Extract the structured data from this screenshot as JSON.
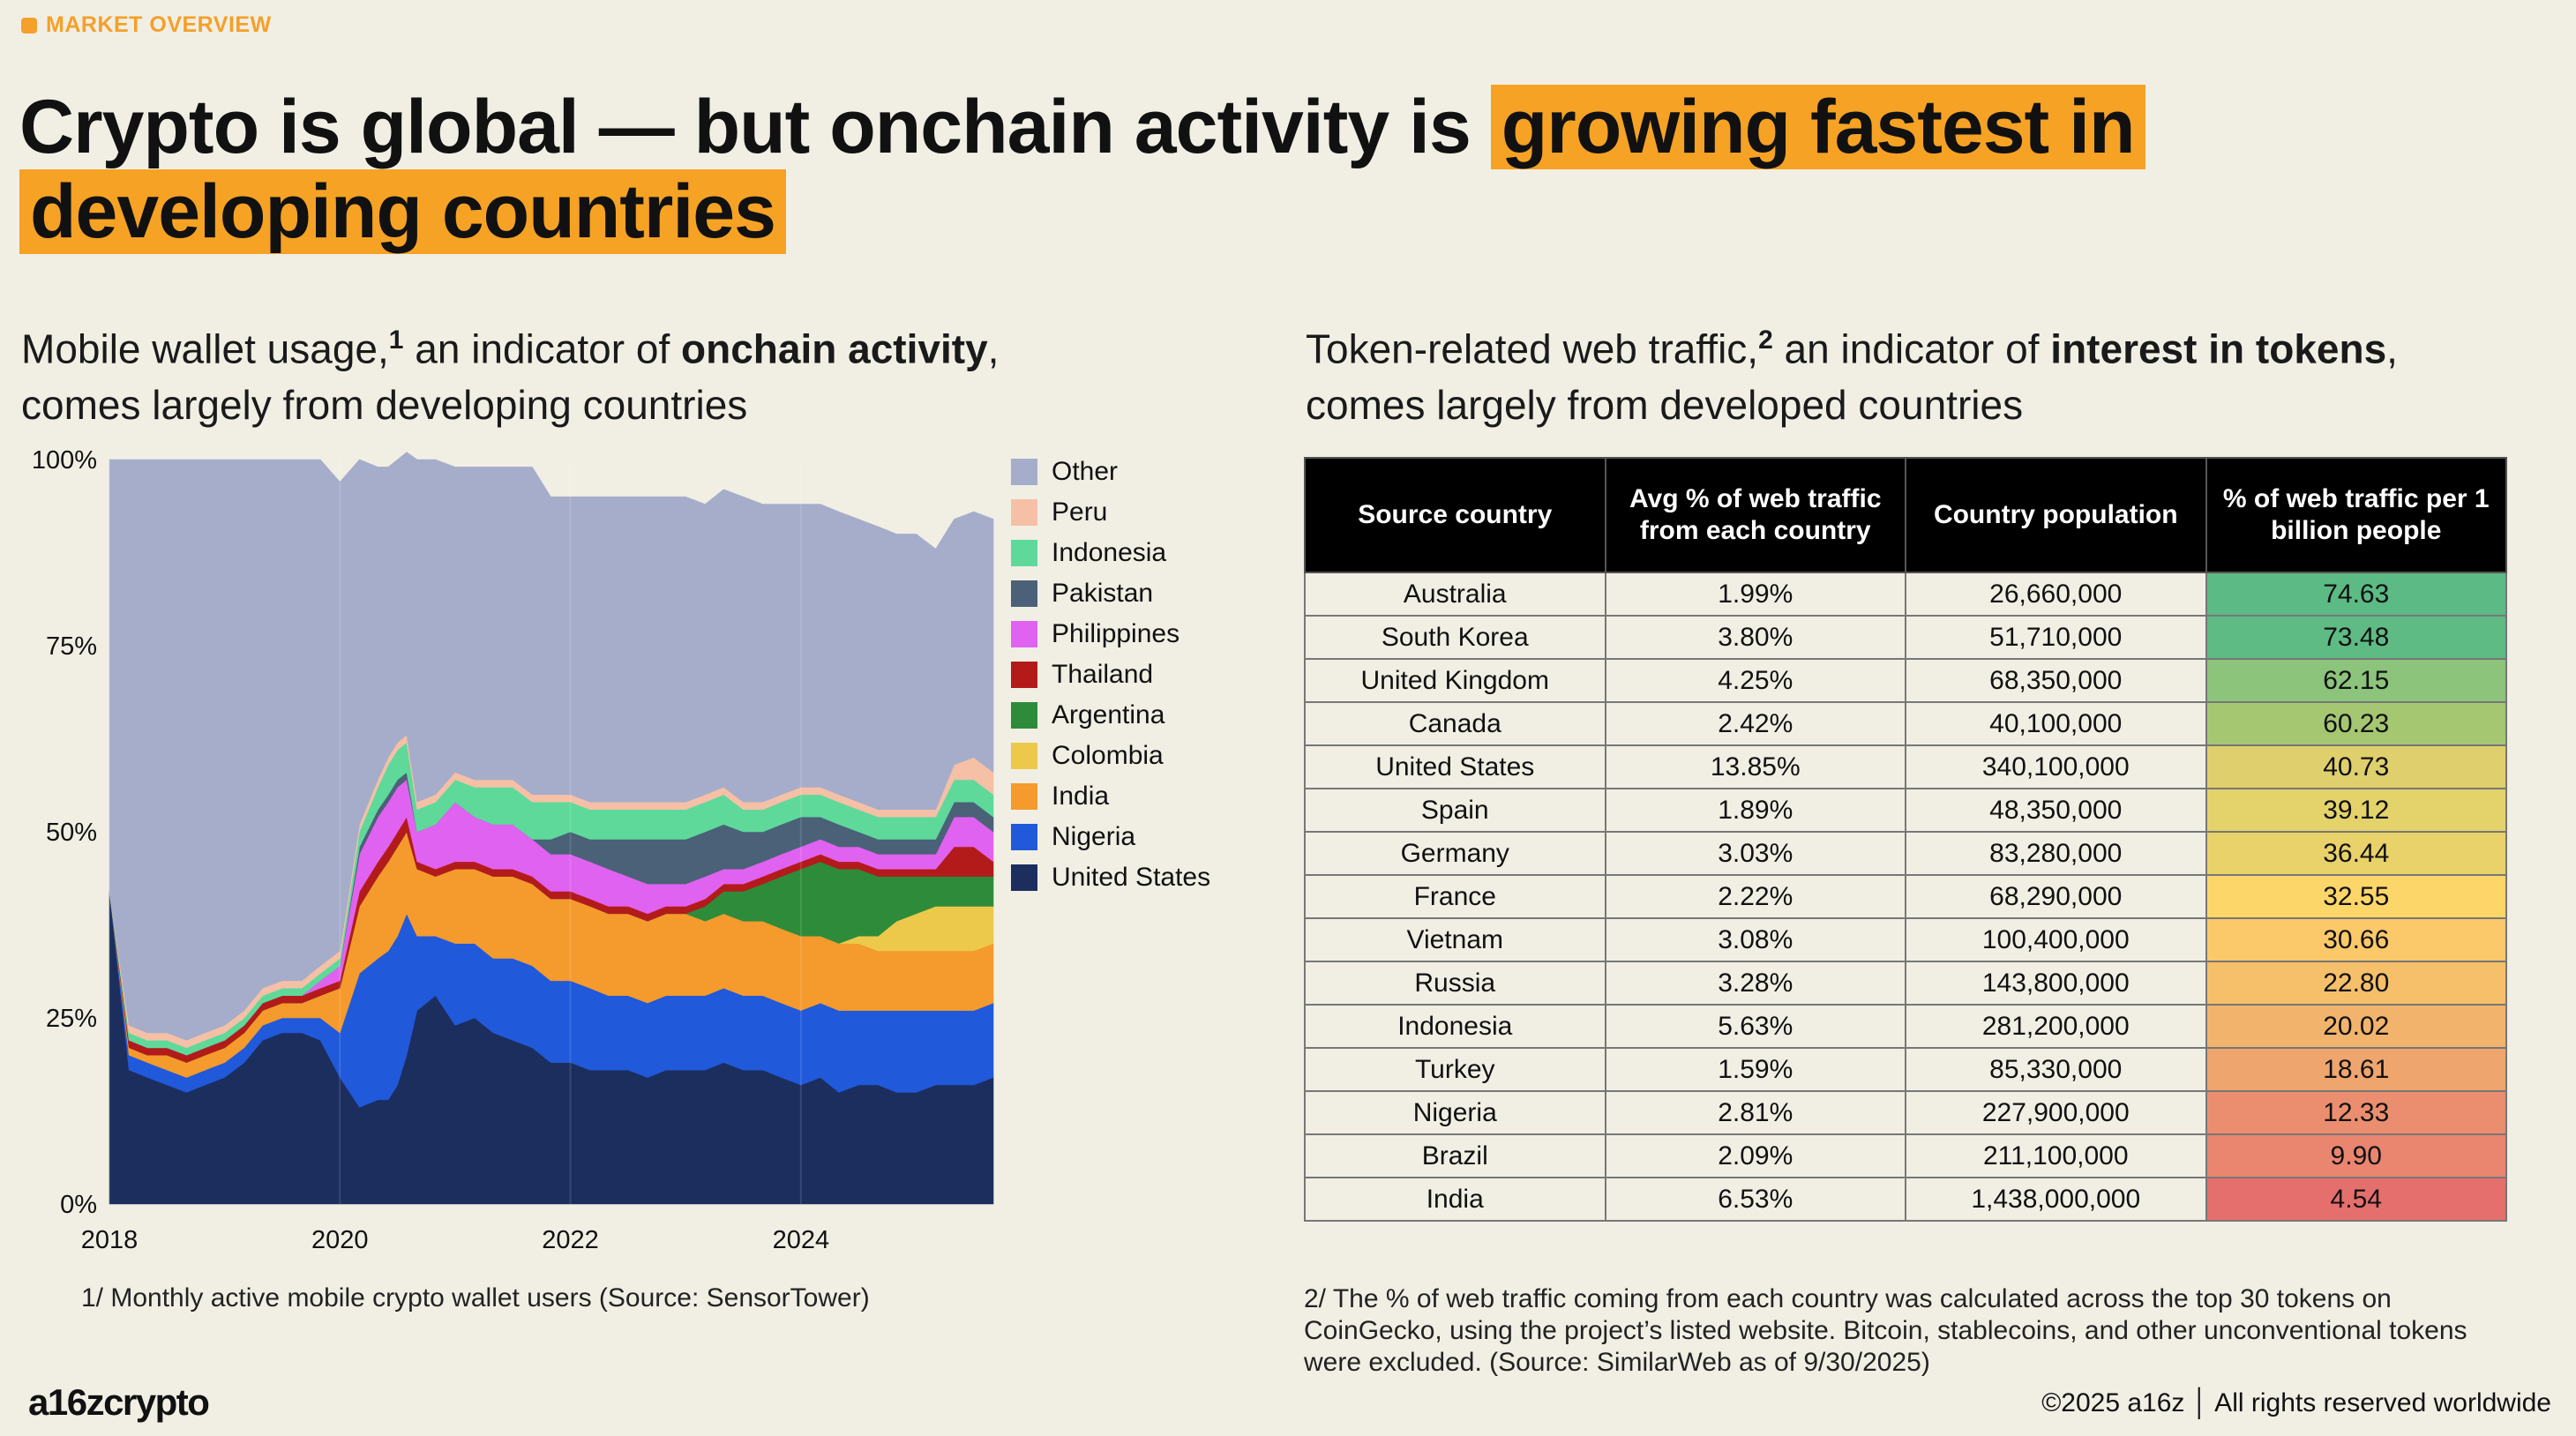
{
  "tag": "MARKET OVERVIEW",
  "headline": {
    "plain": "Crypto is global — but onchain activity is ",
    "highlight": "growing fastest in developing countries"
  },
  "left": {
    "subtitle_a": "Mobile wallet usage,",
    "subtitle_sup": "1",
    "subtitle_b": " an indicator of ",
    "subtitle_bold": "onchain activity",
    "subtitle_c": ",",
    "subtitle_d": "comes largely from developing countries",
    "footnote": "1/ Monthly active mobile crypto wallet users (Source: SensorTower)"
  },
  "right": {
    "subtitle_a": "Token-related web traffic,",
    "subtitle_sup": "2",
    "subtitle_b": " an indicator of ",
    "subtitle_bold": "interest in tokens",
    "subtitle_c": ",",
    "subtitle_d": "comes largely from developed countries",
    "footnote": "2/ The % of web traffic coming from each country was calculated across the top 30 tokens on CoinGecko, using the project’s listed website. Bitcoin, stablecoins, and other unconventional tokens were excluded. (Source: SimilarWeb as of 9/30/2025)"
  },
  "chart_data": {
    "type": "area",
    "stacked": true,
    "ylim": [
      0,
      100
    ],
    "y_ticks": [
      "0%",
      "25%",
      "50%",
      "75%",
      "100%"
    ],
    "x_ticks": [
      "2018",
      "2020",
      "2022",
      "2024"
    ],
    "x_range": [
      2018.0,
      2025.67
    ],
    "x": [
      2018.0,
      2018.17,
      2018.33,
      2018.5,
      2018.67,
      2018.83,
      2019.0,
      2019.17,
      2019.33,
      2019.5,
      2019.67,
      2019.83,
      2020.0,
      2020.17,
      2020.33,
      2020.42,
      2020.5,
      2020.58,
      2020.67,
      2020.83,
      2021.0,
      2021.17,
      2021.33,
      2021.5,
      2021.67,
      2021.83,
      2022.0,
      2022.17,
      2022.33,
      2022.5,
      2022.67,
      2022.83,
      2023.0,
      2023.17,
      2023.33,
      2023.5,
      2023.67,
      2023.83,
      2024.0,
      2024.17,
      2024.33,
      2024.5,
      2024.67,
      2024.83,
      2025.0,
      2025.17,
      2025.33,
      2025.5,
      2025.67
    ],
    "series": [
      {
        "name": "United States",
        "color": "#1c2e5e",
        "values": [
          42,
          18,
          17,
          16,
          15,
          16,
          17,
          19,
          22,
          23,
          23,
          22,
          17,
          13,
          14,
          14,
          16,
          20,
          26,
          28,
          24,
          25,
          23,
          22,
          21,
          19,
          19,
          18,
          18,
          18,
          17,
          18,
          18,
          18,
          19,
          18,
          18,
          17,
          16,
          17,
          15,
          16,
          16,
          15,
          15,
          16,
          16,
          16,
          17
        ]
      },
      {
        "name": "Nigeria",
        "color": "#2059d9",
        "values": [
          0,
          2,
          2,
          2,
          2,
          2,
          2,
          2,
          2,
          2,
          2,
          3,
          6,
          18,
          19,
          20,
          20,
          19,
          10,
          8,
          11,
          10,
          10,
          11,
          11,
          11,
          11,
          11,
          10,
          10,
          10,
          10,
          10,
          10,
          10,
          10,
          10,
          10,
          10,
          10,
          11,
          10,
          10,
          11,
          11,
          10,
          10,
          10,
          10
        ]
      },
      {
        "name": "India",
        "color": "#f59a2c",
        "values": [
          0,
          1,
          1,
          2,
          2,
          2,
          2,
          2,
          2,
          2,
          2,
          3,
          6,
          9,
          11,
          12,
          12,
          11,
          9,
          8,
          10,
          10,
          11,
          11,
          11,
          11,
          11,
          11,
          11,
          11,
          11,
          11,
          11,
          10,
          10,
          10,
          10,
          10,
          10,
          9,
          9,
          9,
          8,
          8,
          8,
          8,
          8,
          8,
          8
        ]
      },
      {
        "name": "Colombia",
        "color": "#ecc94b",
        "values": [
          0,
          0,
          0,
          0,
          0,
          0,
          0,
          0,
          0,
          0,
          0,
          0,
          0,
          0,
          0,
          0,
          0,
          0,
          0,
          0,
          0,
          0,
          0,
          0,
          0,
          0,
          0,
          0,
          0,
          0,
          0,
          0,
          0,
          0,
          0,
          0,
          0,
          0,
          0,
          0,
          0,
          1,
          2,
          4,
          5,
          6,
          6,
          6,
          5
        ]
      },
      {
        "name": "Argentina",
        "color": "#2e8b3a",
        "values": [
          0,
          0,
          0,
          0,
          0,
          0,
          0,
          0,
          0,
          0,
          0,
          0,
          0,
          0,
          0,
          0,
          0,
          0,
          0,
          0,
          0,
          0,
          0,
          0,
          0,
          0,
          0,
          0,
          0,
          0,
          0,
          0,
          0,
          2,
          3,
          4,
          5,
          7,
          9,
          10,
          10,
          9,
          8,
          6,
          5,
          4,
          4,
          4,
          4
        ]
      },
      {
        "name": "Thailand",
        "color": "#b31b1b",
        "values": [
          0,
          1,
          1,
          1,
          1,
          1,
          1,
          1,
          1,
          1,
          1,
          1,
          1,
          2,
          2,
          2,
          2,
          2,
          1,
          1,
          1,
          1,
          1,
          1,
          1,
          1,
          1,
          1,
          1,
          1,
          1,
          1,
          1,
          1,
          1,
          1,
          1,
          1,
          1,
          1,
          1,
          1,
          1,
          1,
          1,
          1,
          4,
          4,
          2
        ]
      },
      {
        "name": "Philippines",
        "color": "#e062f0",
        "values": [
          0,
          0,
          0,
          0,
          0,
          0,
          0,
          0,
          0,
          0,
          0,
          1,
          2,
          5,
          6,
          6,
          6,
          5,
          4,
          6,
          8,
          6,
          6,
          6,
          5,
          5,
          5,
          5,
          5,
          4,
          4,
          3,
          3,
          3,
          2,
          2,
          2,
          2,
          2,
          2,
          2,
          2,
          2,
          2,
          2,
          2,
          4,
          4,
          4
        ]
      },
      {
        "name": "Pakistan",
        "color": "#4a6178",
        "values": [
          0,
          0,
          0,
          0,
          0,
          0,
          0,
          0,
          0,
          0,
          0,
          0,
          0,
          1,
          1,
          1,
          1,
          1,
          0,
          0,
          0,
          0,
          0,
          0,
          0,
          2,
          3,
          3,
          4,
          5,
          6,
          6,
          6,
          6,
          6,
          5,
          4,
          4,
          4,
          3,
          3,
          2,
          2,
          2,
          2,
          2,
          2,
          2,
          2
        ]
      },
      {
        "name": "Indonesia",
        "color": "#5ed99a",
        "values": [
          0,
          1,
          1,
          1,
          1,
          1,
          1,
          1,
          1,
          1,
          1,
          1,
          1,
          2,
          3,
          4,
          4,
          4,
          3,
          3,
          3,
          4,
          5,
          5,
          5,
          5,
          4,
          4,
          4,
          4,
          4,
          4,
          4,
          4,
          4,
          3,
          3,
          3,
          3,
          3,
          3,
          3,
          3,
          3,
          3,
          3,
          3,
          3,
          3
        ]
      },
      {
        "name": "Peru",
        "color": "#f5c0a6",
        "values": [
          0,
          1,
          1,
          1,
          1,
          1,
          1,
          1,
          1,
          1,
          1,
          1,
          1,
          1,
          1,
          1,
          1,
          1,
          1,
          1,
          1,
          1,
          1,
          1,
          1,
          1,
          1,
          1,
          1,
          1,
          1,
          1,
          1,
          1,
          1,
          1,
          1,
          1,
          1,
          1,
          1,
          1,
          1,
          1,
          1,
          1,
          2,
          3,
          3
        ]
      },
      {
        "name": "Other",
        "color": "#a6adca",
        "values": [
          58,
          76,
          77,
          77,
          78,
          77,
          76,
          74,
          71,
          70,
          70,
          68,
          63,
          49,
          42,
          39,
          38,
          38,
          46,
          45,
          41,
          42,
          42,
          42,
          44,
          40,
          40,
          41,
          41,
          41,
          41,
          41,
          41,
          39,
          40,
          41,
          40,
          39,
          38,
          38,
          38,
          38,
          38,
          37,
          37,
          35,
          33,
          33,
          34
        ]
      }
    ]
  },
  "table": {
    "headers": [
      "Source country",
      "Avg % of web traffic from each country",
      "Country population",
      "% of web traffic per 1 billion people"
    ],
    "rows": [
      {
        "country": "Australia",
        "pct": "1.99%",
        "pop": "26,660,000",
        "per": "74.63",
        "color": "#5cba85"
      },
      {
        "country": "South Korea",
        "pct": "3.80%",
        "pop": "51,710,000",
        "per": "73.48",
        "color": "#5fbb84"
      },
      {
        "country": "United Kingdom",
        "pct": "4.25%",
        "pop": "68,350,000",
        "per": "62.15",
        "color": "#8cc47b"
      },
      {
        "country": "Canada",
        "pct": "2.42%",
        "pop": "40,100,000",
        "per": "60.23",
        "color": "#a5c772"
      },
      {
        "country": "United States",
        "pct": "13.85%",
        "pop": "340,100,000",
        "per": "40.73",
        "color": "#dfd06d"
      },
      {
        "country": "Spain",
        "pct": "1.89%",
        "pop": "48,350,000",
        "per": "39.12",
        "color": "#e4d36b"
      },
      {
        "country": "Germany",
        "pct": "3.03%",
        "pop": "83,280,000",
        "per": "36.44",
        "color": "#e8d269"
      },
      {
        "country": "France",
        "pct": "2.22%",
        "pop": "68,290,000",
        "per": "32.55",
        "color": "#fdd66a"
      },
      {
        "country": "Vietnam",
        "pct": "3.08%",
        "pop": "100,400,000",
        "per": "30.66",
        "color": "#fbc86a"
      },
      {
        "country": "Russia",
        "pct": "3.28%",
        "pop": "143,800,000",
        "per": "22.80",
        "color": "#f6bf6a"
      },
      {
        "country": "Indonesia",
        "pct": "5.63%",
        "pop": "281,200,000",
        "per": "20.02",
        "color": "#f2b46c"
      },
      {
        "country": "Turkey",
        "pct": "1.59%",
        "pop": "85,330,000",
        "per": "18.61",
        "color": "#efa56e"
      },
      {
        "country": "Nigeria",
        "pct": "2.81%",
        "pop": "227,900,000",
        "per": "12.33",
        "color": "#eb8e6f"
      },
      {
        "country": "Brazil",
        "pct": "2.09%",
        "pop": "211,100,000",
        "per": "9.90",
        "color": "#ea8570"
      },
      {
        "country": "India",
        "pct": "6.53%",
        "pop": "1,438,000,000",
        "per": "4.54",
        "color": "#e56f6c"
      }
    ]
  },
  "logo": "a16zcrypto",
  "copyright": "©2025 a16z │ All rights reserved worldwide"
}
